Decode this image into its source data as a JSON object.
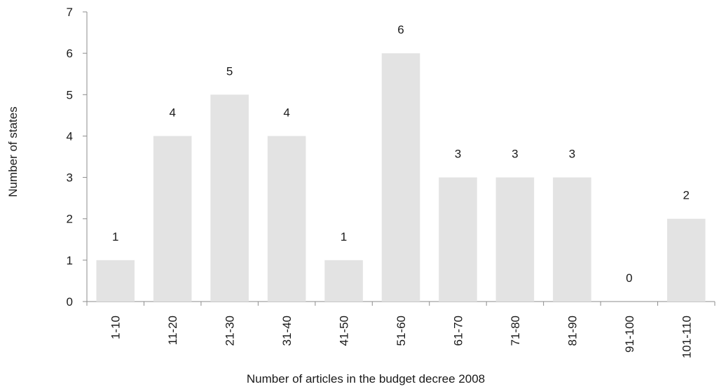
{
  "chart_data": {
    "type": "bar",
    "categories": [
      "1-10",
      "11-20",
      "21-30",
      "31-40",
      "41-50",
      "51-60",
      "61-70",
      "71-80",
      "81-90",
      "91-100",
      "101-110"
    ],
    "values": [
      1,
      4,
      5,
      4,
      1,
      6,
      3,
      3,
      3,
      0,
      2
    ],
    "xlabel": "Number of articles in the budget decree 2008",
    "ylabel": "Number of states",
    "ylim": [
      0,
      7
    ],
    "yticks": [
      0,
      1,
      2,
      3,
      4,
      5,
      6,
      7
    ],
    "data_labels": true,
    "grid": false,
    "legend": "none",
    "bar_color": "#e3e3e3",
    "axis_color": "#8c8c8c"
  }
}
